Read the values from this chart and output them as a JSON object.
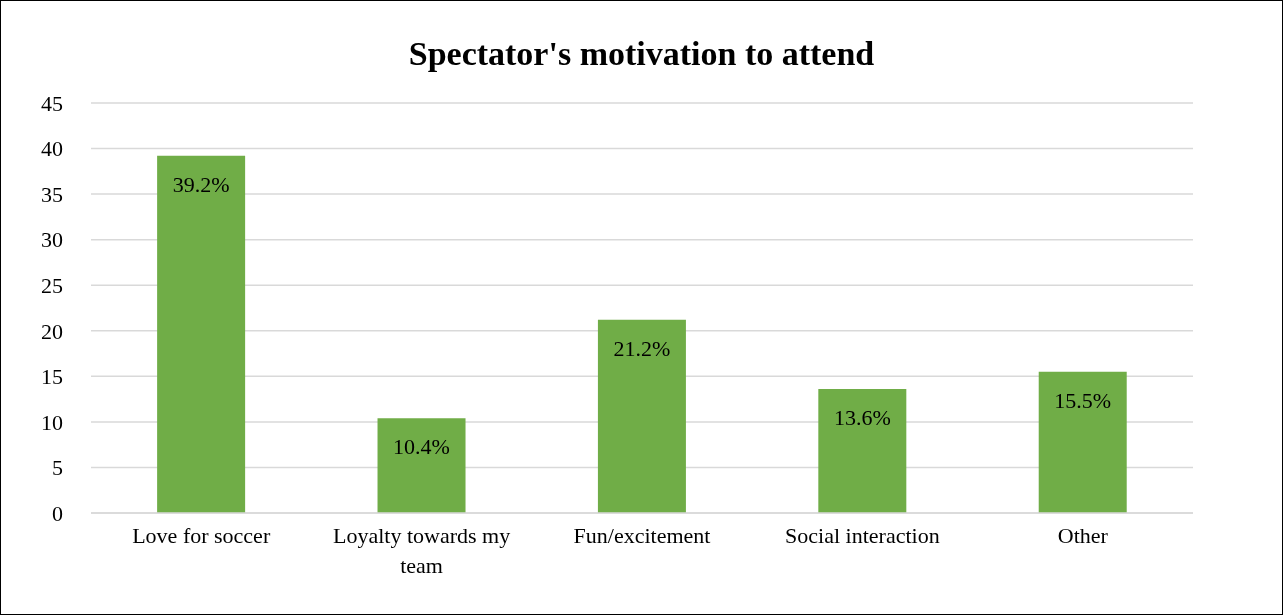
{
  "chart_data": {
    "type": "bar",
    "title": "Spectator's motivation to attend",
    "categories": [
      "Love for soccer",
      "Loyalty towards my team",
      "Fun/excitement",
      "Social interaction",
      "Other"
    ],
    "values": [
      39.2,
      10.4,
      21.2,
      13.6,
      15.5
    ],
    "color": "#70ad47",
    "value_labels": [
      "39.2%",
      "10.4%",
      "21.2%",
      "13.6%",
      "15.5%"
    ],
    "ylim": [
      0,
      45
    ],
    "yticks": [
      0,
      5,
      10,
      15,
      20,
      25,
      30,
      35,
      40,
      45
    ],
    "grid": "y"
  }
}
